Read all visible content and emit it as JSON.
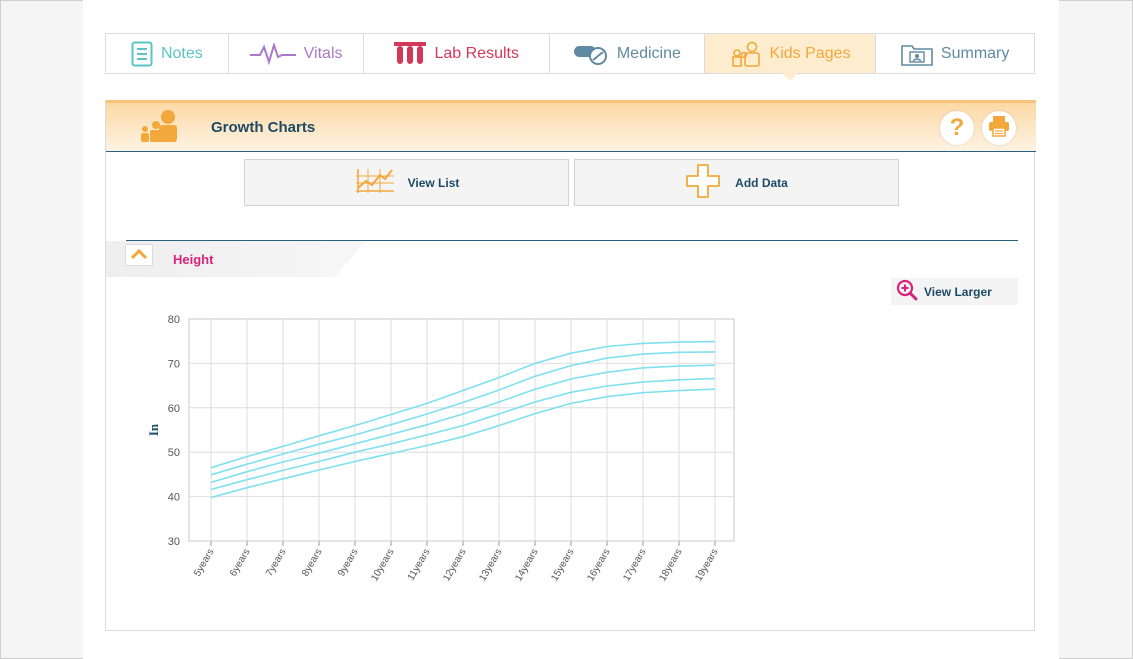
{
  "tabs": [
    {
      "label": "Notes",
      "icon": "notes-icon",
      "color": "#5cc3c7"
    },
    {
      "label": "Vitals",
      "icon": "vitals-icon",
      "color": "#a979c8"
    },
    {
      "label": "Lab Results",
      "icon": "lab-results-icon",
      "color": "#d3385a"
    },
    {
      "label": "Medicine",
      "icon": "medicine-icon",
      "color": "#5f8aa1"
    },
    {
      "label": "Kids Pages",
      "icon": "kids-icon",
      "color": "#f2a83b",
      "active": true
    },
    {
      "label": "Summary",
      "icon": "summary-icon",
      "color": "#5f8aa1"
    }
  ],
  "header": {
    "title": "Growth Charts",
    "help_icon": "help-icon",
    "print_icon": "print-icon"
  },
  "actions": {
    "view_list": "View List",
    "add_data": "Add Data"
  },
  "section": {
    "title": "Height",
    "view_larger": "View Larger"
  },
  "colors": {
    "accent_orange": "#f2a83b",
    "navy": "#1e4a66",
    "magenta": "#d6237d",
    "curve": "#7fe0f0"
  },
  "chart_data": {
    "type": "line",
    "title": "",
    "xlabel": "",
    "ylabel": "In",
    "ylim": [
      30,
      80
    ],
    "yticks": [
      30,
      40,
      50,
      60,
      70,
      80
    ],
    "categories": [
      "5years",
      "6years",
      "7years",
      "8years",
      "9years",
      "10years",
      "11years",
      "12years",
      "13years",
      "14years",
      "15years",
      "16years",
      "17years",
      "18years",
      "19years"
    ],
    "series": [
      {
        "values": [
          39.8,
          42.0,
          44.0,
          46.0,
          47.9,
          49.7,
          51.5,
          53.5,
          56.0,
          58.7,
          61.0,
          62.5,
          63.4,
          63.9,
          64.2
        ]
      },
      {
        "values": [
          41.6,
          43.8,
          45.9,
          47.9,
          50.0,
          51.9,
          53.9,
          56.0,
          58.6,
          61.3,
          63.5,
          64.9,
          65.8,
          66.3,
          66.6
        ]
      },
      {
        "values": [
          43.2,
          45.6,
          47.8,
          49.8,
          51.9,
          54.0,
          56.2,
          58.6,
          61.3,
          64.2,
          66.5,
          68.0,
          69.0,
          69.4,
          69.6
        ]
      },
      {
        "values": [
          44.9,
          47.3,
          49.6,
          51.8,
          53.9,
          56.2,
          58.6,
          61.2,
          64.0,
          67.1,
          69.5,
          71.2,
          72.1,
          72.5,
          72.6
        ]
      },
      {
        "values": [
          46.5,
          49.0,
          51.3,
          53.7,
          56.0,
          58.5,
          61.0,
          63.9,
          66.8,
          70.0,
          72.3,
          73.8,
          74.5,
          74.8,
          74.9
        ]
      }
    ],
    "grid": true,
    "legend": "none"
  }
}
